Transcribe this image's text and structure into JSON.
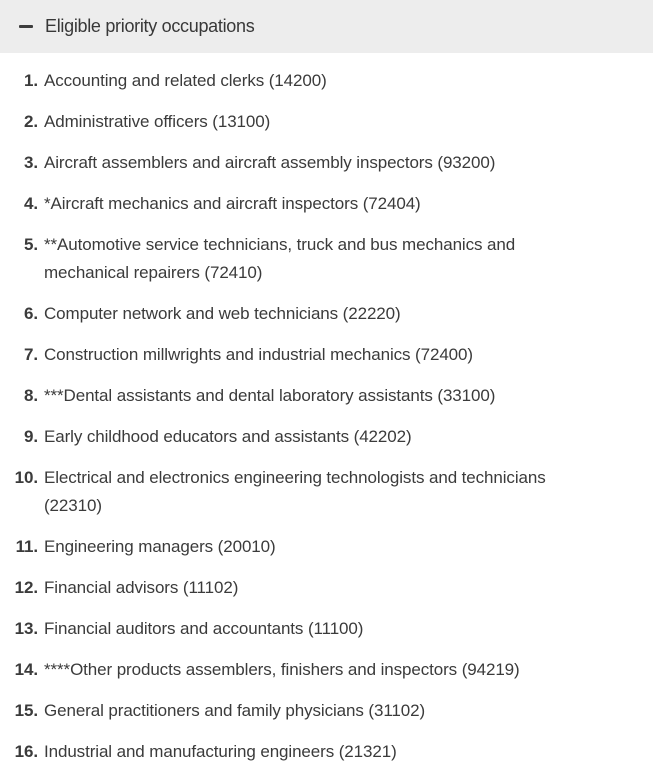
{
  "accordion": {
    "title": "Eligible priority occupations",
    "state": "expanded",
    "collapse_icon": "minus-icon"
  },
  "colors": {
    "header_bg": "#ededed",
    "text": "#3b3b3b",
    "icon": "#3d3d3d",
    "page_bg": "#ffffff"
  },
  "occupations": [
    {
      "num": "1.",
      "text": "Accounting and related clerks (14200)"
    },
    {
      "num": "2.",
      "text": "Administrative officers (13100)"
    },
    {
      "num": "3.",
      "text": "Aircraft assemblers and aircraft assembly inspectors (93200)"
    },
    {
      "num": "4.",
      "text": "*Aircraft mechanics and aircraft inspectors (72404)"
    },
    {
      "num": "5.",
      "text": "**Automotive service technicians, truck and bus mechanics and mechanical repairers (72410)"
    },
    {
      "num": "6.",
      "text": "Computer network and web technicians (22220)"
    },
    {
      "num": "7.",
      "text": "Construction millwrights and industrial mechanics (72400)"
    },
    {
      "num": "8.",
      "text": "***Dental assistants and dental laboratory assistants (33100)"
    },
    {
      "num": "9.",
      "text": "Early childhood educators and assistants (42202)"
    },
    {
      "num": "10.",
      "text": "Electrical and electronics engineering technologists and technicians (22310)"
    },
    {
      "num": "11.",
      "text": "Engineering managers (20010)"
    },
    {
      "num": "12.",
      "text": "Financial advisors (11102)"
    },
    {
      "num": "13.",
      "text": "Financial auditors and accountants (11100)"
    },
    {
      "num": "14.",
      "text": "****Other products assemblers, finishers and inspectors (94219)"
    },
    {
      "num": "15.",
      "text": "General practitioners and family physicians (31102)"
    },
    {
      "num": "16.",
      "text": "Industrial and manufacturing engineers (21321)"
    }
  ]
}
